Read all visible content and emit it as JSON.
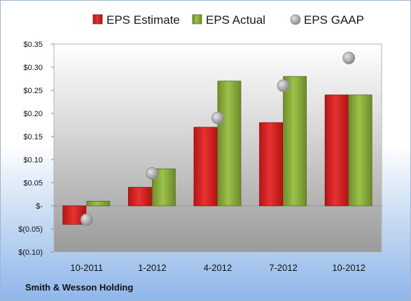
{
  "company": "Smith & Wesson Holding",
  "chart_data": {
    "type": "bar",
    "categories": [
      "10-2011",
      "1-2012",
      "4-2012",
      "7-2012",
      "10-2012"
    ],
    "series": [
      {
        "name": "EPS Estimate",
        "kind": "bar",
        "color": "#d42222",
        "values": [
          -0.04,
          0.04,
          0.17,
          0.18,
          0.24
        ]
      },
      {
        "name": "EPS Actual",
        "kind": "bar",
        "color": "#8fb040",
        "values": [
          0.01,
          0.08,
          0.27,
          0.28,
          0.24
        ]
      },
      {
        "name": "EPS GAAP",
        "kind": "marker",
        "color": "#a8a8a8",
        "values": [
          -0.03,
          0.07,
          0.19,
          0.26,
          0.32
        ]
      }
    ],
    "y_ticks": [
      {
        "value": 0.35,
        "label": "$0.35"
      },
      {
        "value": 0.3,
        "label": "$0.30"
      },
      {
        "value": 0.25,
        "label": "$0.25"
      },
      {
        "value": 0.2,
        "label": "$0.20"
      },
      {
        "value": 0.15,
        "label": "$0.15"
      },
      {
        "value": 0.1,
        "label": "$0.10"
      },
      {
        "value": 0.05,
        "label": "$0.05"
      },
      {
        "value": 0.0,
        "label": "$-"
      },
      {
        "value": -0.05,
        "label": "$(0.05)"
      },
      {
        "value": -0.1,
        "label": "$(0.10)"
      }
    ],
    "ylim": [
      -0.1,
      0.35
    ],
    "grid": false,
    "legend_position": "top"
  }
}
